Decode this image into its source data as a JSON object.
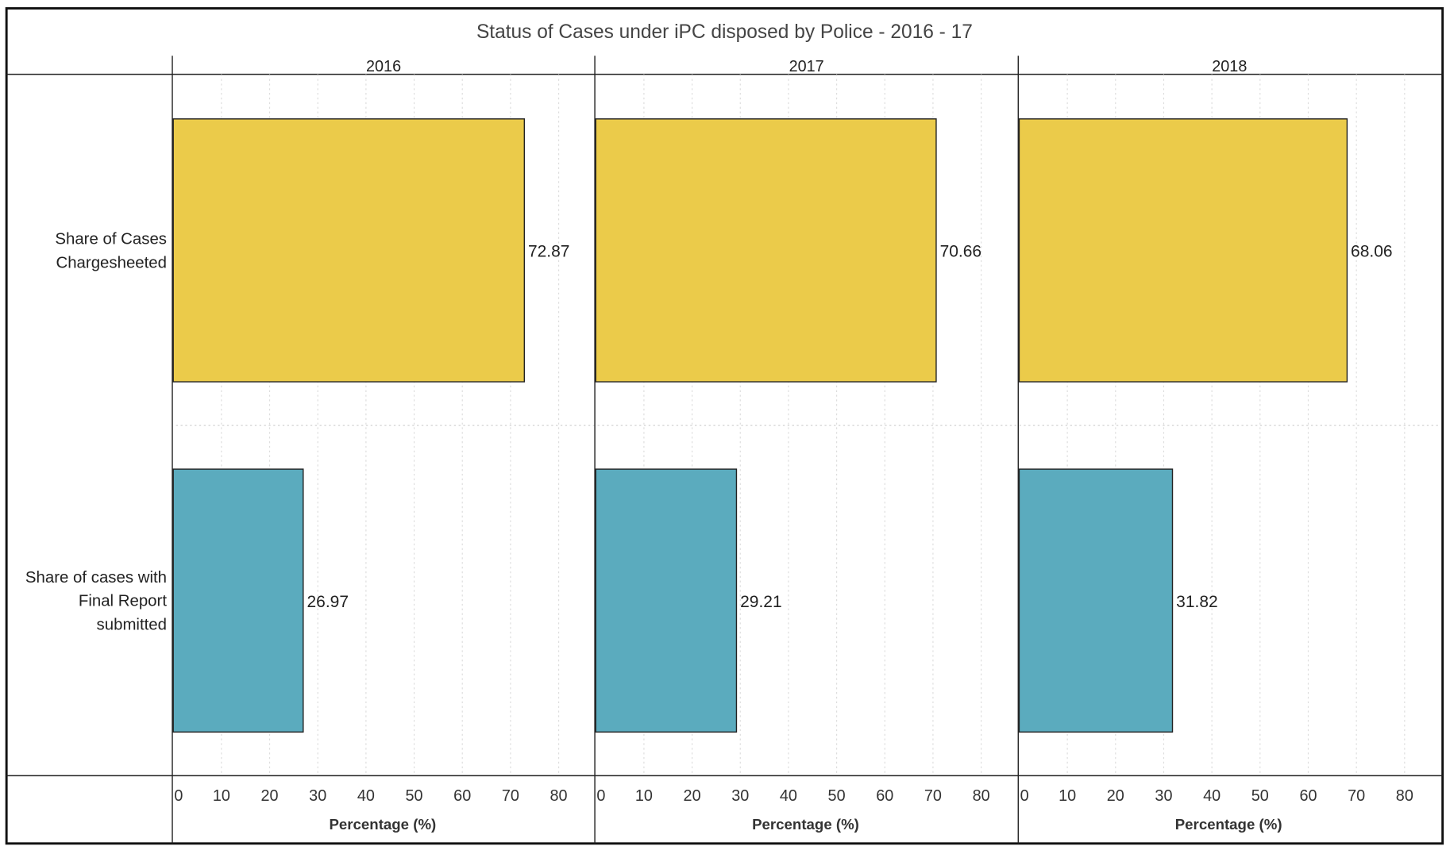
{
  "chart_data": {
    "type": "bar",
    "orientation": "horizontal",
    "title": "Status of Cases under iPC disposed by Police - 2016 - 17",
    "panels": [
      "2016",
      "2017",
      "2018"
    ],
    "categories": [
      "Share of Cases Chargesheeted",
      "Share of cases with Final Report submitted"
    ],
    "category_lines": [
      [
        "Share of Cases",
        "Chargesheeted"
      ],
      [
        "Share of cases with",
        "Final Report",
        "submitted"
      ]
    ],
    "series": [
      {
        "panel": "2016",
        "values": [
          72.87,
          26.97
        ],
        "labels": [
          "72.87",
          "26.97"
        ]
      },
      {
        "panel": "2017",
        "values": [
          70.66,
          29.21
        ],
        "labels": [
          "70.66",
          "29.21"
        ]
      },
      {
        "panel": "2018",
        "values": [
          68.06,
          31.82
        ],
        "labels": [
          "68.06",
          "31.82"
        ]
      }
    ],
    "xlabel": "Percentage (%)",
    "xticks": [
      0,
      10,
      20,
      30,
      40,
      50,
      60,
      70,
      80
    ],
    "xlim": [
      0,
      87.7
    ],
    "grid": "vertical dotted",
    "colors": {
      "Share of Cases Chargesheeted": "#EBCB4A",
      "Share of cases with Final Report submitted": "#5BABBE"
    }
  }
}
